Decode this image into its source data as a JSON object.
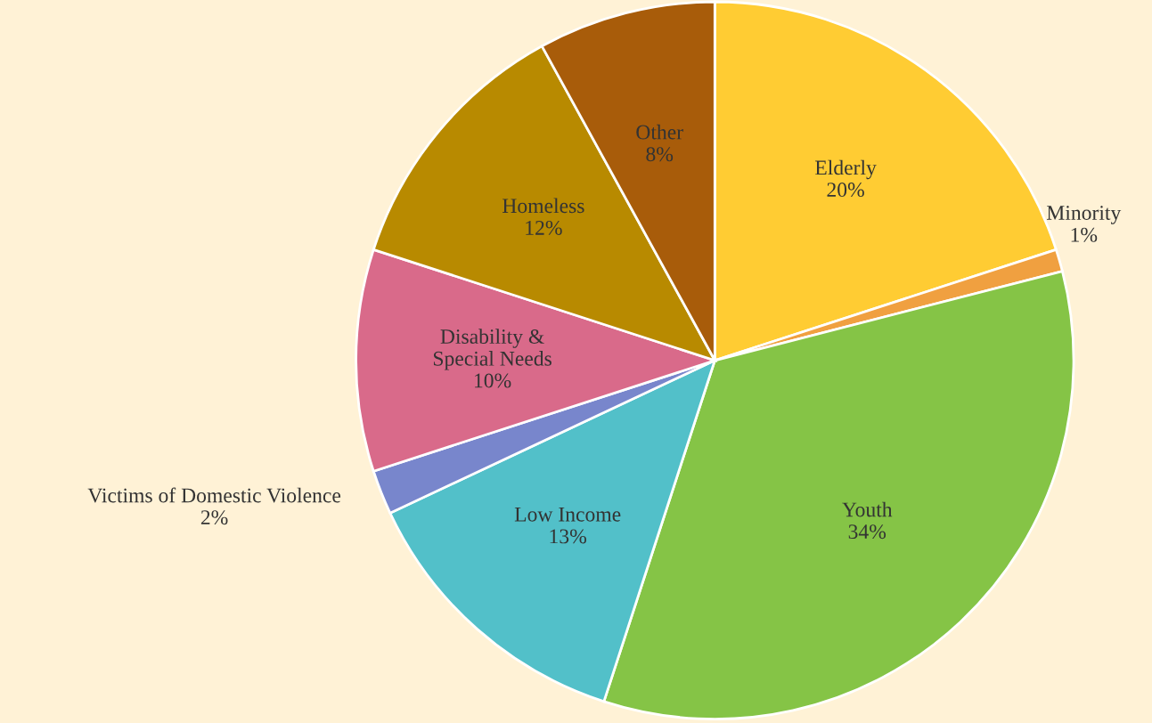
{
  "chart_data": {
    "type": "pie",
    "categories": [
      "Elderly",
      "Minority",
      "Youth",
      "Low Income",
      "Victims of Domestic Violence",
      "Disability &\nSpecial Needs",
      "Homeless",
      "Other"
    ],
    "values": [
      20,
      1,
      34,
      13,
      2,
      10,
      12,
      8
    ],
    "value_labels": [
      "20%",
      "1%",
      "34%",
      "13%",
      "2%",
      "10%",
      "12%",
      "8%"
    ],
    "colors": [
      "#ffcc33",
      "#f0a040",
      "#85c446",
      "#52c0c9",
      "#7886cc",
      "#d96a8a",
      "#b88a00",
      "#a85c0a"
    ],
    "legend": false
  }
}
